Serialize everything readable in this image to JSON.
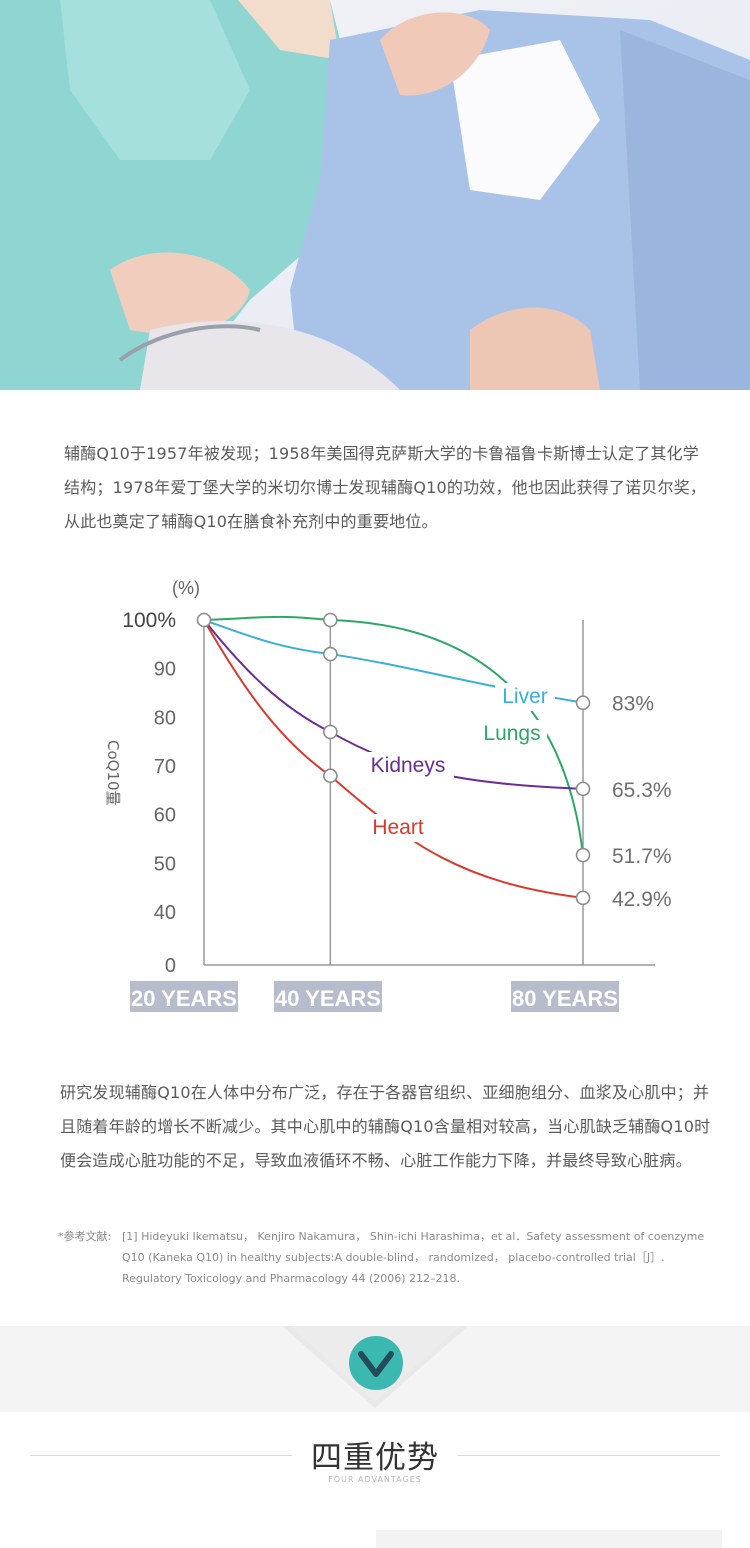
{
  "intro_text": "辅酶Q10于1957年被发现；1958年美国得克萨斯大学的卡鲁福鲁卡斯博士认定了其化学结构；1978年爱丁堡大学的米切尔博士发现辅酶Q10的功效，他也因此获得了诺贝尔奖，从此也奠定了辅酶Q10在膳食补充剂中的重要地位。",
  "chart_data": {
    "type": "line",
    "unit_label": "(%)",
    "ylabel": "CoQ10量",
    "yticks": [
      "100%",
      "90",
      "80",
      "70",
      "60",
      "50",
      "40",
      "0"
    ],
    "x_labels": [
      "20 YEARS",
      "40 YEARS",
      "80 YEARS"
    ],
    "x": [
      20,
      40,
      80
    ],
    "series": [
      {
        "name": "Liver",
        "color": "#3ab0d8",
        "values": [
          100,
          93,
          83
        ],
        "end_label": "83%"
      },
      {
        "name": "Lungs",
        "color": "#2ca865",
        "values": [
          100,
          100,
          51.7
        ],
        "end_label": "51.7%"
      },
      {
        "name": "Kidneys",
        "color": "#6a2d96",
        "values": [
          100,
          77,
          65.3
        ],
        "end_label": "65.3%"
      },
      {
        "name": "Heart",
        "color": "#d93a2b",
        "values": [
          100,
          68,
          42.9
        ],
        "end_label": "42.9%"
      }
    ]
  },
  "body_text": "研究发现辅酶Q10在人体中分布广泛，存在于各器官组织、亚细胞组分、血浆及心肌中；并且随着年龄的增长不断减少。其中心肌中的辅酶Q10含量相对较高，当心肌缺乏辅酶Q10时便会造成心脏功能的不足，导致血液循环不畅、心脏工作能力下降，并最终导致心脏病。",
  "reference": {
    "label": "*参考文献:",
    "text": "[1] Hideyuki Ikematsu， Kenjiro Nakamura， Shin-ichi Harashima，et al．Safety assessment of coenzyme Q10 (Kaneka Q10) in healthy subjects:A double-blind， randomized， placebo-controlled trial［J］. Regulatory Toxicology and Pharmacology 44 (2006) 212–218."
  },
  "section": {
    "title": "四重优势",
    "subtitle": "FOUR ADVANTAGES",
    "badge_icon": "chevron-down-icon",
    "badge_color": "#3bb8b0"
  }
}
